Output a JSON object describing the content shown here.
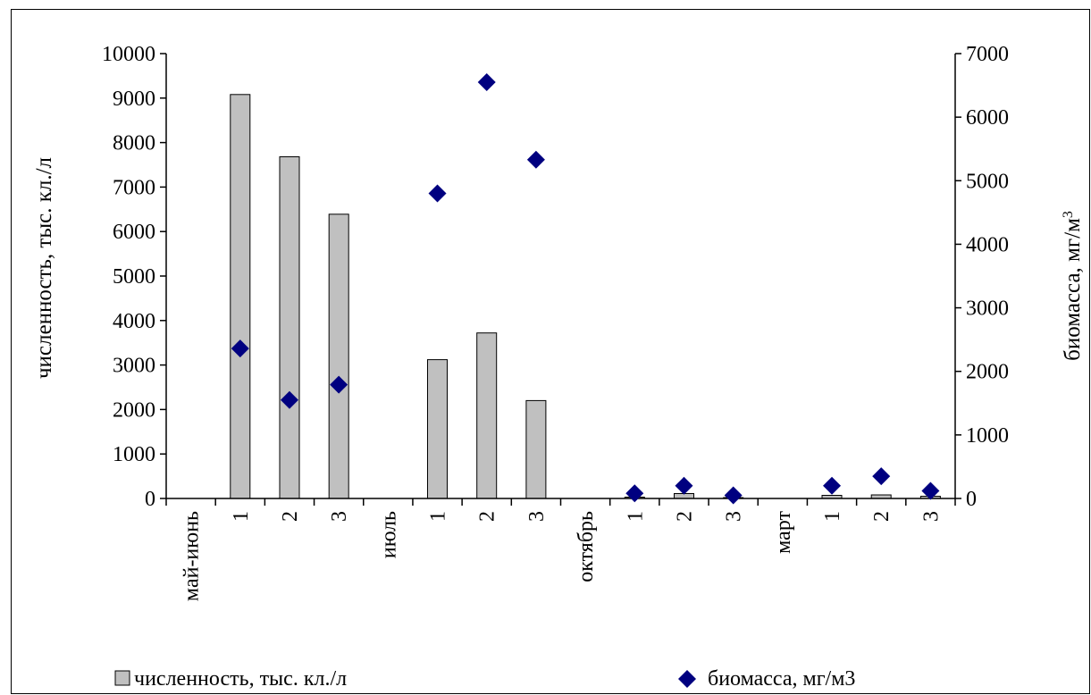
{
  "chart_data": {
    "type": "bar",
    "categories": [
      "май-июнь",
      "1",
      "2",
      "3",
      "июль",
      "1",
      "2",
      "3",
      "октябрь",
      "1",
      "2",
      "3",
      "март",
      "1",
      "2",
      "3"
    ],
    "series": [
      {
        "name": "численность, тыс. кл./л",
        "type": "bar",
        "axis": "left",
        "color": "#c0c0c0",
        "values": [
          null,
          9080,
          7680,
          6390,
          null,
          3120,
          3720,
          2200,
          null,
          30,
          110,
          20,
          null,
          70,
          80,
          50
        ]
      },
      {
        "name": "биомасса, мг/м3",
        "type": "scatter",
        "axis": "right",
        "color": "#000080",
        "marker": "diamond",
        "values": [
          null,
          2360,
          1550,
          1790,
          null,
          4800,
          6550,
          5330,
          null,
          80,
          200,
          50,
          null,
          200,
          350,
          120
        ]
      }
    ],
    "y_left": {
      "label": "численность, тыс. кл./л",
      "ylim": [
        0,
        10000
      ],
      "ticks": [
        "0",
        "1000",
        "2000",
        "3000",
        "4000",
        "5000",
        "6000",
        "7000",
        "8000",
        "9000",
        "10000"
      ]
    },
    "y_right": {
      "label_main": "биомасса, мг/м",
      "label_sup": "3",
      "ylim": [
        0,
        7000
      ],
      "ticks": [
        "0",
        "1000",
        "2000",
        "3000",
        "4000",
        "5000",
        "6000",
        "7000"
      ]
    },
    "grid": false,
    "legend": {
      "position": "bottom",
      "items": [
        "численность, тыс. кл./л",
        "биомасса, мг/м3"
      ]
    }
  }
}
